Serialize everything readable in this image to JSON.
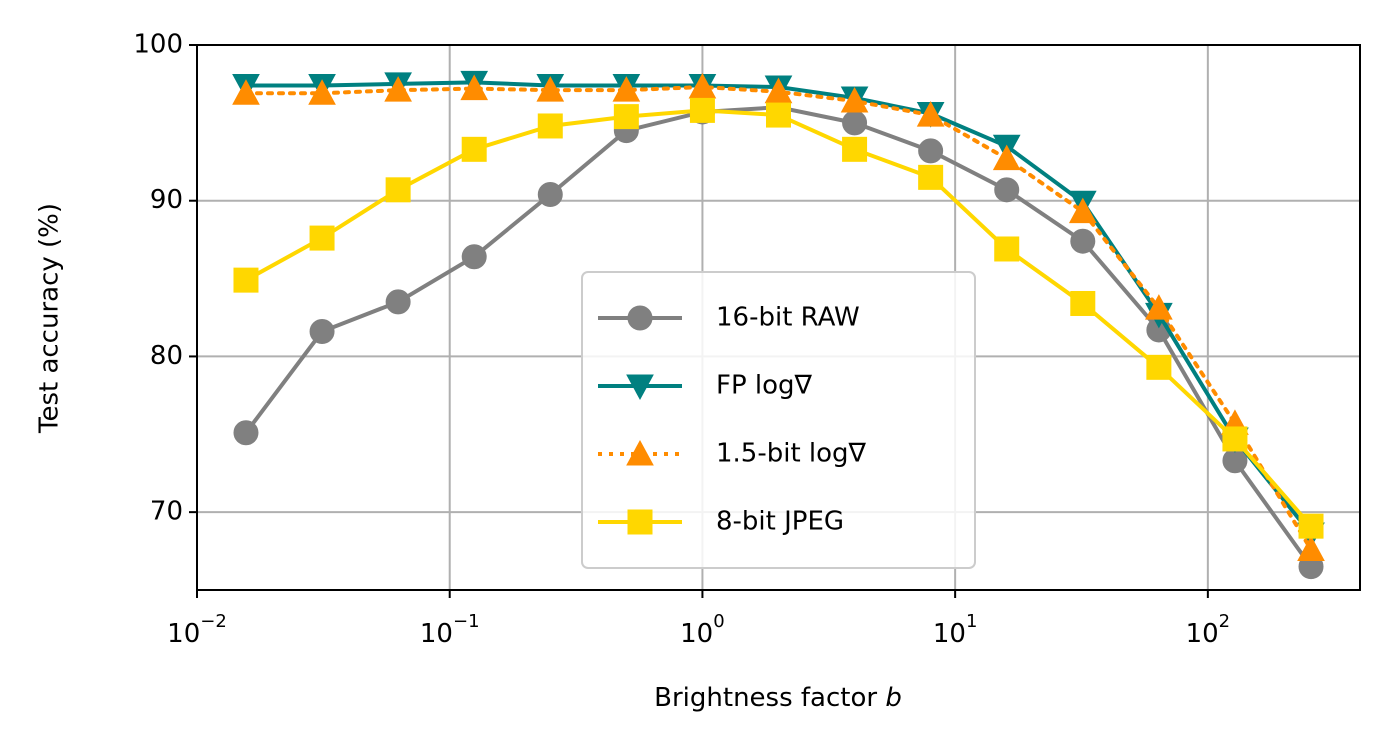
{
  "chart_data": {
    "type": "line",
    "xlabel": "Brightness factor b",
    "ylabel": "Test accuracy (%)",
    "log_x": true,
    "grid": true,
    "legend_loc": "lower center",
    "x": [
      0.015625,
      0.03125,
      0.0625,
      0.125,
      0.25,
      0.5,
      1,
      2,
      4,
      8,
      16,
      32,
      64,
      128,
      256
    ],
    "xlim": [
      0.01,
      400
    ],
    "ylim": [
      65,
      100
    ],
    "xticks": [
      {
        "value": 0.01,
        "label": "10−2"
      },
      {
        "value": 0.1,
        "label": "10−1"
      },
      {
        "value": 1,
        "label": "100"
      },
      {
        "value": 10,
        "label": "101"
      },
      {
        "value": 100,
        "label": "102"
      }
    ],
    "yticks": [
      70,
      80,
      90,
      100
    ],
    "series": [
      {
        "name": "16-bit RAW",
        "color": "#808080",
        "marker": "circle",
        "linestyle": "solid",
        "values": [
          75.1,
          81.6,
          83.5,
          86.4,
          90.4,
          94.5,
          95.7,
          96.0,
          95.0,
          93.2,
          90.7,
          87.4,
          81.7,
          73.3,
          66.5
        ]
      },
      {
        "name": "FP log∇",
        "color": "#008080",
        "marker": "triangle-down",
        "linestyle": "solid",
        "values": [
          97.4,
          97.4,
          97.5,
          97.6,
          97.4,
          97.4,
          97.4,
          97.3,
          96.6,
          95.6,
          93.5,
          89.9,
          82.7,
          74.7,
          68.6
        ]
      },
      {
        "name": "1.5-bit log∇",
        "color": "#ff8c00",
        "marker": "triangle-up",
        "linestyle": "dotted",
        "values": [
          96.9,
          96.9,
          97.1,
          97.2,
          97.1,
          97.1,
          97.3,
          97.0,
          96.4,
          95.5,
          92.7,
          89.3,
          83.1,
          75.7,
          67.6
        ]
      },
      {
        "name": "8-bit JPEG",
        "color": "#ffd700",
        "marker": "square",
        "linestyle": "solid",
        "values": [
          84.9,
          87.6,
          90.7,
          93.3,
          94.8,
          95.4,
          95.8,
          95.5,
          93.3,
          91.5,
          86.9,
          83.4,
          79.3,
          74.7,
          69.1
        ]
      }
    ]
  }
}
